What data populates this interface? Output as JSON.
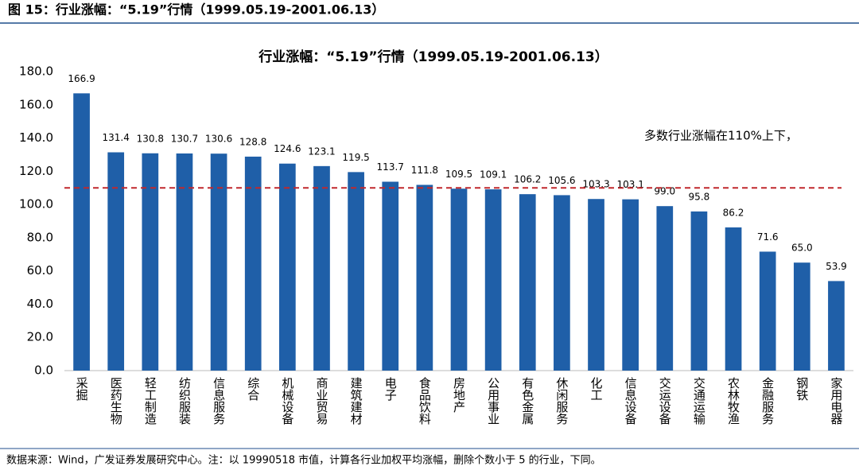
{
  "header": {
    "title": "图 15：行业涨幅：“5.19”行情（1999.05.19-2001.06.13）"
  },
  "chart_data": {
    "type": "bar",
    "title": "行业涨幅：“5.19”行情（1999.05.19-2001.06.13）",
    "categories": [
      "采掘",
      "医药生物",
      "轻工制造",
      "纺织服装",
      "信息服务",
      "综合",
      "机械设备",
      "商业贸易",
      "建筑建材",
      "电子",
      "食品饮料",
      "房地产",
      "公用事业",
      "有色金属",
      "休闲服务",
      "化工",
      "信息设备",
      "交运设备",
      "交通运输",
      "农林牧渔",
      "金融服务",
      "钢铁",
      "家用电器"
    ],
    "values": [
      166.9,
      131.4,
      130.8,
      130.7,
      130.6,
      128.8,
      124.6,
      123.1,
      119.5,
      113.7,
      111.8,
      109.5,
      109.1,
      106.2,
      105.6,
      103.3,
      103.1,
      99.0,
      95.8,
      86.2,
      71.6,
      65.0,
      53.9
    ],
    "value_labels": [
      "166.9",
      "131.4",
      "130.8",
      "130.7",
      "130.6",
      "128.8",
      "124.6",
      "123.1",
      "119.5",
      "113.7",
      "111.8",
      "109.5",
      "109.1",
      "106.2",
      "105.6",
      "103.3",
      "103.1",
      "99.0",
      "95.8",
      "86.2",
      "71.6",
      "65.0",
      "53.9"
    ],
    "color": "#1f5fa8",
    "ylim": [
      0,
      180
    ],
    "yticks": [
      {
        "value": 0,
        "label": "0.0"
      },
      {
        "value": 20,
        "label": "20.0"
      },
      {
        "value": 40,
        "label": "40.0"
      },
      {
        "value": 60,
        "label": "60.0"
      },
      {
        "value": 80,
        "label": "80.0"
      },
      {
        "value": 100,
        "label": "100.0"
      },
      {
        "value": 120,
        "label": "120.0"
      },
      {
        "value": 140,
        "label": "140.0"
      },
      {
        "value": 160,
        "label": "160.0"
      },
      {
        "value": 180,
        "label": "180.0"
      }
    ],
    "grid": false,
    "reference_line": {
      "value": 110,
      "color": "#c0282d"
    },
    "annotation": "多数行业涨幅在110%上下，"
  },
  "footer": {
    "source": "数据来源：Wind，广发证券发展研究中心。注：以 19990518 市值，计算各行业加权平均涨幅，删除个数小于 5 的行业，下同。"
  }
}
